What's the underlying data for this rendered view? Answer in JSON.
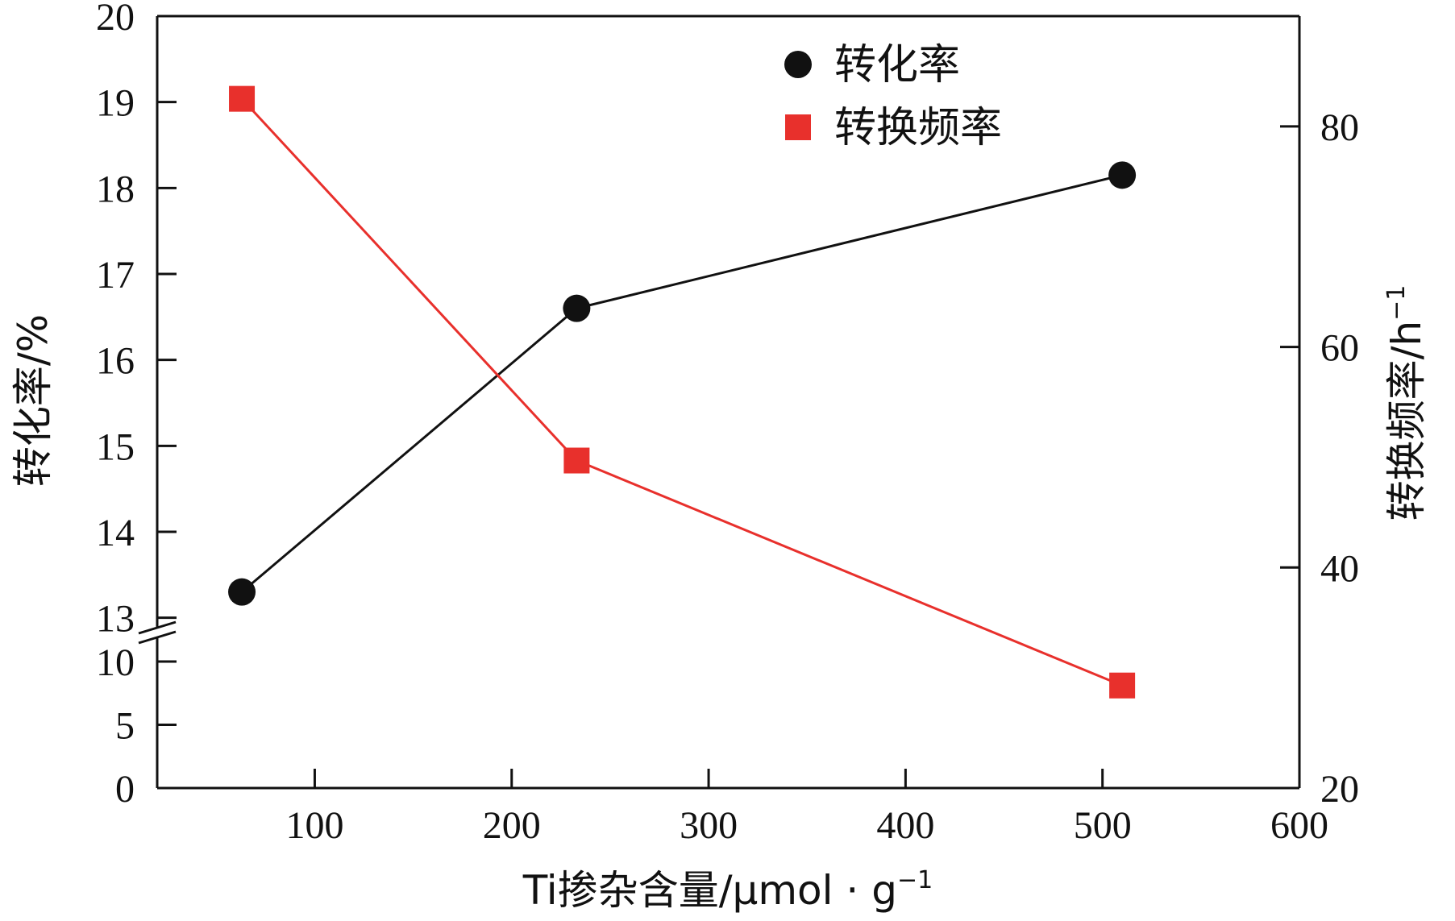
{
  "chart_data": {
    "type": "line",
    "x": [
      63,
      233,
      510
    ],
    "xlim": [
      20,
      600
    ],
    "x_ticks": [
      100,
      200,
      300,
      400,
      500,
      600
    ],
    "xlabel": "Ti掺杂含量/μmol · g",
    "xlabel_sup": "−1",
    "ylabel_left": "转化率/%",
    "ylabel_right": "转换频率/h",
    "ylabel_right_sup": "−1",
    "left_axis": {
      "lower_ticks": [
        0,
        5,
        10
      ],
      "upper_ticks": [
        13,
        14,
        15,
        16,
        17,
        18,
        19,
        20
      ],
      "lower_range": [
        0,
        12.1
      ],
      "upper_range": [
        12.8,
        20
      ],
      "break": true
    },
    "right_axis": {
      "ticks": [
        20,
        40,
        60,
        80
      ],
      "range": [
        20,
        90
      ]
    },
    "series": [
      {
        "name": "转化率",
        "axis": "left",
        "marker": "circle",
        "color": "#111111",
        "values": [
          13.3,
          16.6,
          18.15
        ]
      },
      {
        "name": "转换频率",
        "axis": "right",
        "marker": "square",
        "color": "#e8302c",
        "values": [
          82.5,
          49.7,
          29.3
        ]
      }
    ],
    "legend": {
      "position": "top-right",
      "entries": [
        "转化率",
        "转换频率"
      ]
    }
  }
}
